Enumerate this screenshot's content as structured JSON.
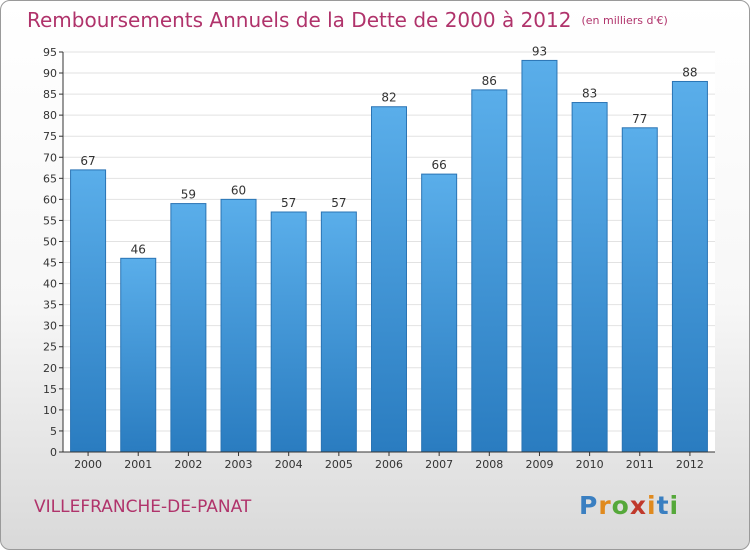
{
  "chart_data": {
    "type": "bar",
    "title": "Remboursements Annuels de la Dette de 2000 à 2012",
    "unit_label": "(en milliers d'€)",
    "categories": [
      "2000",
      "2001",
      "2002",
      "2003",
      "2004",
      "2005",
      "2006",
      "2007",
      "2008",
      "2009",
      "2010",
      "2011",
      "2012"
    ],
    "values": [
      67,
      46,
      59,
      60,
      57,
      57,
      82,
      66,
      86,
      93,
      83,
      77,
      88
    ],
    "ylim": [
      0,
      95
    ],
    "yticks": [
      0,
      5,
      10,
      15,
      20,
      25,
      30,
      35,
      40,
      45,
      50,
      55,
      60,
      65,
      70,
      75,
      80,
      85,
      90,
      95
    ],
    "grid": true,
    "bar_color": "#3f94d8",
    "xlabel": "",
    "ylabel": ""
  },
  "commune": "VILLEFRANCHE-DE-PANAT",
  "logo": {
    "letters": [
      "P",
      "r",
      "o",
      "x",
      "i",
      "t",
      "i"
    ],
    "colors": [
      "#3a7fc1",
      "#e08a1e",
      "#55a83a",
      "#c0392b",
      "#e08a1e",
      "#3a7fc1",
      "#55a83a"
    ]
  },
  "colors": {
    "title": "#b0336b",
    "axis": "#333333",
    "grid": "#e2e2e2"
  }
}
